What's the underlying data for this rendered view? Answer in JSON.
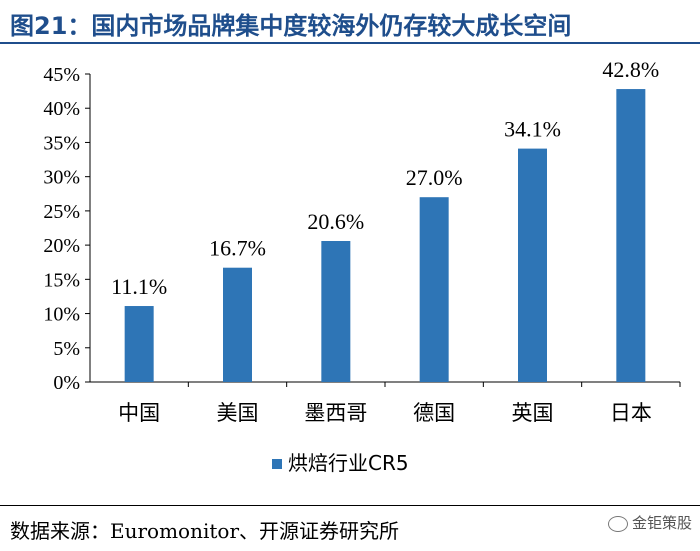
{
  "header": {
    "title": "图21：国内市场品牌集中度较海外仍存较大成长空间"
  },
  "chart_data": {
    "type": "bar",
    "categories": [
      "中国",
      "美国",
      "墨西哥",
      "德国",
      "英国",
      "日本"
    ],
    "series": [
      {
        "name": "烘焙行业CR5",
        "values": [
          11.1,
          16.7,
          20.6,
          27.0,
          34.1,
          42.8
        ],
        "data_labels": [
          "11.1%",
          "16.7%",
          "20.6%",
          "27.0%",
          "34.1%",
          "42.8%"
        ],
        "color": "#2E75B6"
      }
    ],
    "ylim": [
      0,
      45
    ],
    "y_ticks": [
      "0%",
      "5%",
      "10%",
      "15%",
      "20%",
      "25%",
      "30%",
      "35%",
      "40%",
      "45%"
    ],
    "y_tick_values": [
      0,
      5,
      10,
      15,
      20,
      25,
      30,
      35,
      40,
      45
    ],
    "grid": false,
    "legend_position": "bottom",
    "xlabel": "",
    "ylabel": ""
  },
  "footer": {
    "source": "数据来源：Euromonitor、开源证券研究所",
    "watermark": "金钜策股"
  }
}
